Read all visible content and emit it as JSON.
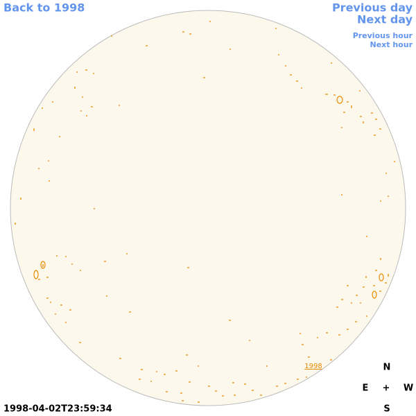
{
  "nav": {
    "back": "Back to 1998",
    "previous_day": "Previous day",
    "next_day": "Next day",
    "previous_hour": "Previous hour",
    "next_hour": "Next hour"
  },
  "timestamp": "1998-04-02T23:59:34",
  "year_link": "1998",
  "compass": {
    "north": "N",
    "south": "S",
    "east": "E",
    "west": "W",
    "center": "+"
  }
}
